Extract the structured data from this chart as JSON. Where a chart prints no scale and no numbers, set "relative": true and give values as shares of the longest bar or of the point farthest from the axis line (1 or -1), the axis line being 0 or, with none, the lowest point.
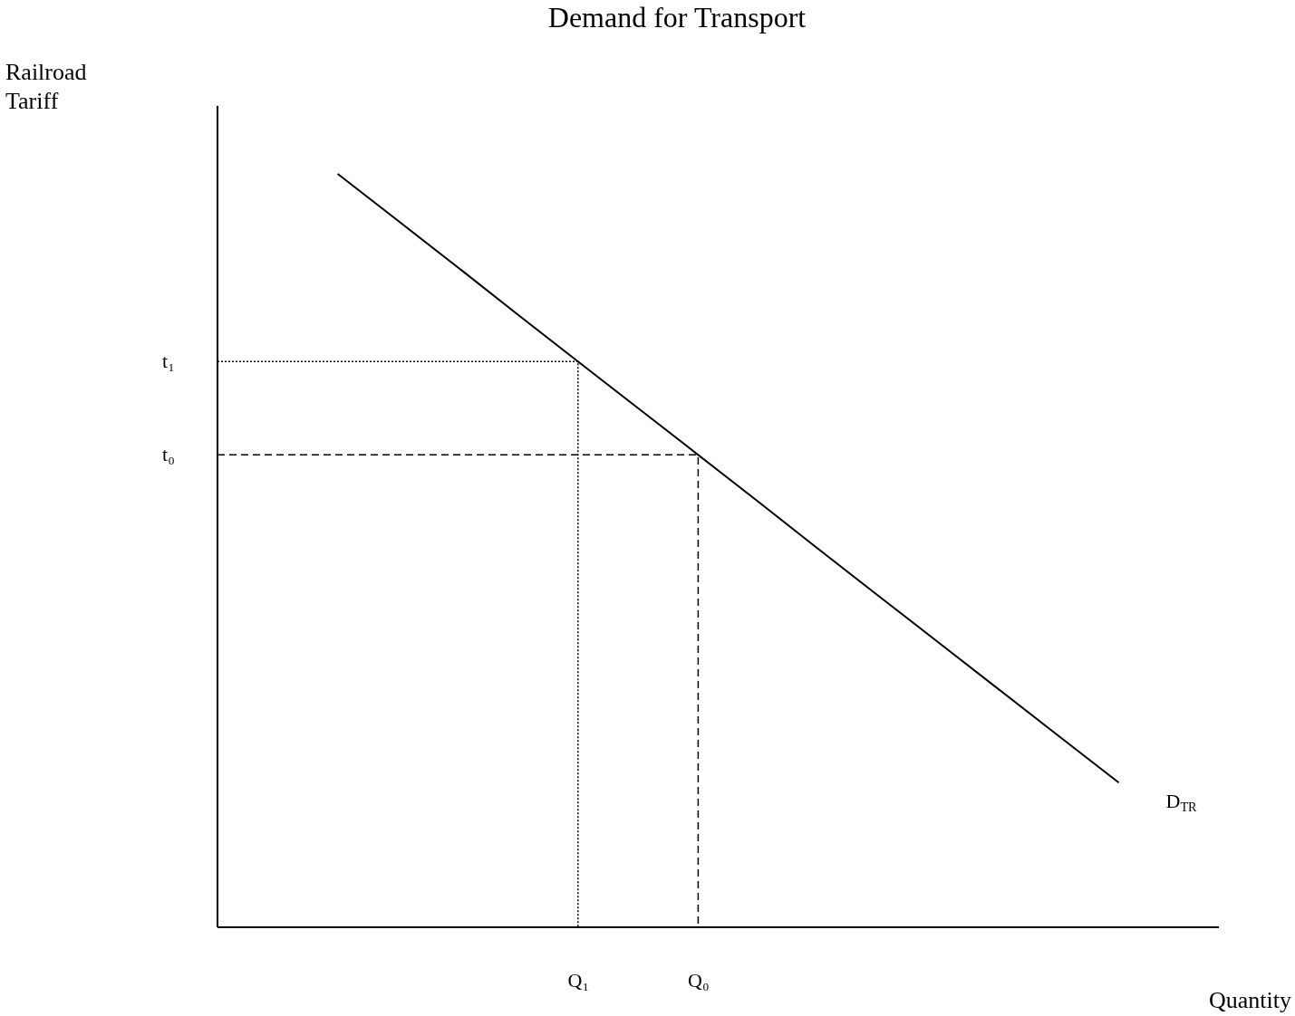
{
  "chart_data": {
    "type": "line",
    "title": "Demand for Transport",
    "xlabel": "Quantity",
    "relative": true,
    "categories": [
      null,
      null,
      null,
      null,
      null,
      null,
      "Q₁",
      null,
      "Q₀",
      null,
      null,
      null,
      null,
      null,
      null,
      null,
      null
    ],
    "series": [
      {
        "name": "D$_{TR}$",
        "color": "#000000",
        "values": [
          null,
          null,
          1,
          0.938,
          0.876,
          0.813,
          0.751,
          0.689,
          0.627,
          0.565,
          0.502,
          0.44,
          0.378,
          0.316,
          0.254,
          0.192,
          null
        ],
        "line_style": "solid"
      },
      {
        "type": "step",
        "color": "#000000",
        "values": [
          0.751,
          0.751,
          0.751,
          0.751,
          0.751,
          0.751,
          0.751,
          0,
          null,
          null,
          null,
          null,
          null,
          null,
          null,
          null,
          null
        ],
        "line_style": "dotted"
      },
      {
        "type": "step",
        "color": "#000000",
        "values": [
          0.627,
          0.627,
          0.627,
          0.627,
          0.627,
          0.627,
          0.627,
          0.627,
          0.627,
          0,
          null,
          null,
          null,
          null,
          null,
          null,
          null
        ],
        "line_style": "dashed"
      }
    ],
    "annotations": [
      "Railroad Tariff",
      "t₁",
      "t₀"
    ]
  }
}
